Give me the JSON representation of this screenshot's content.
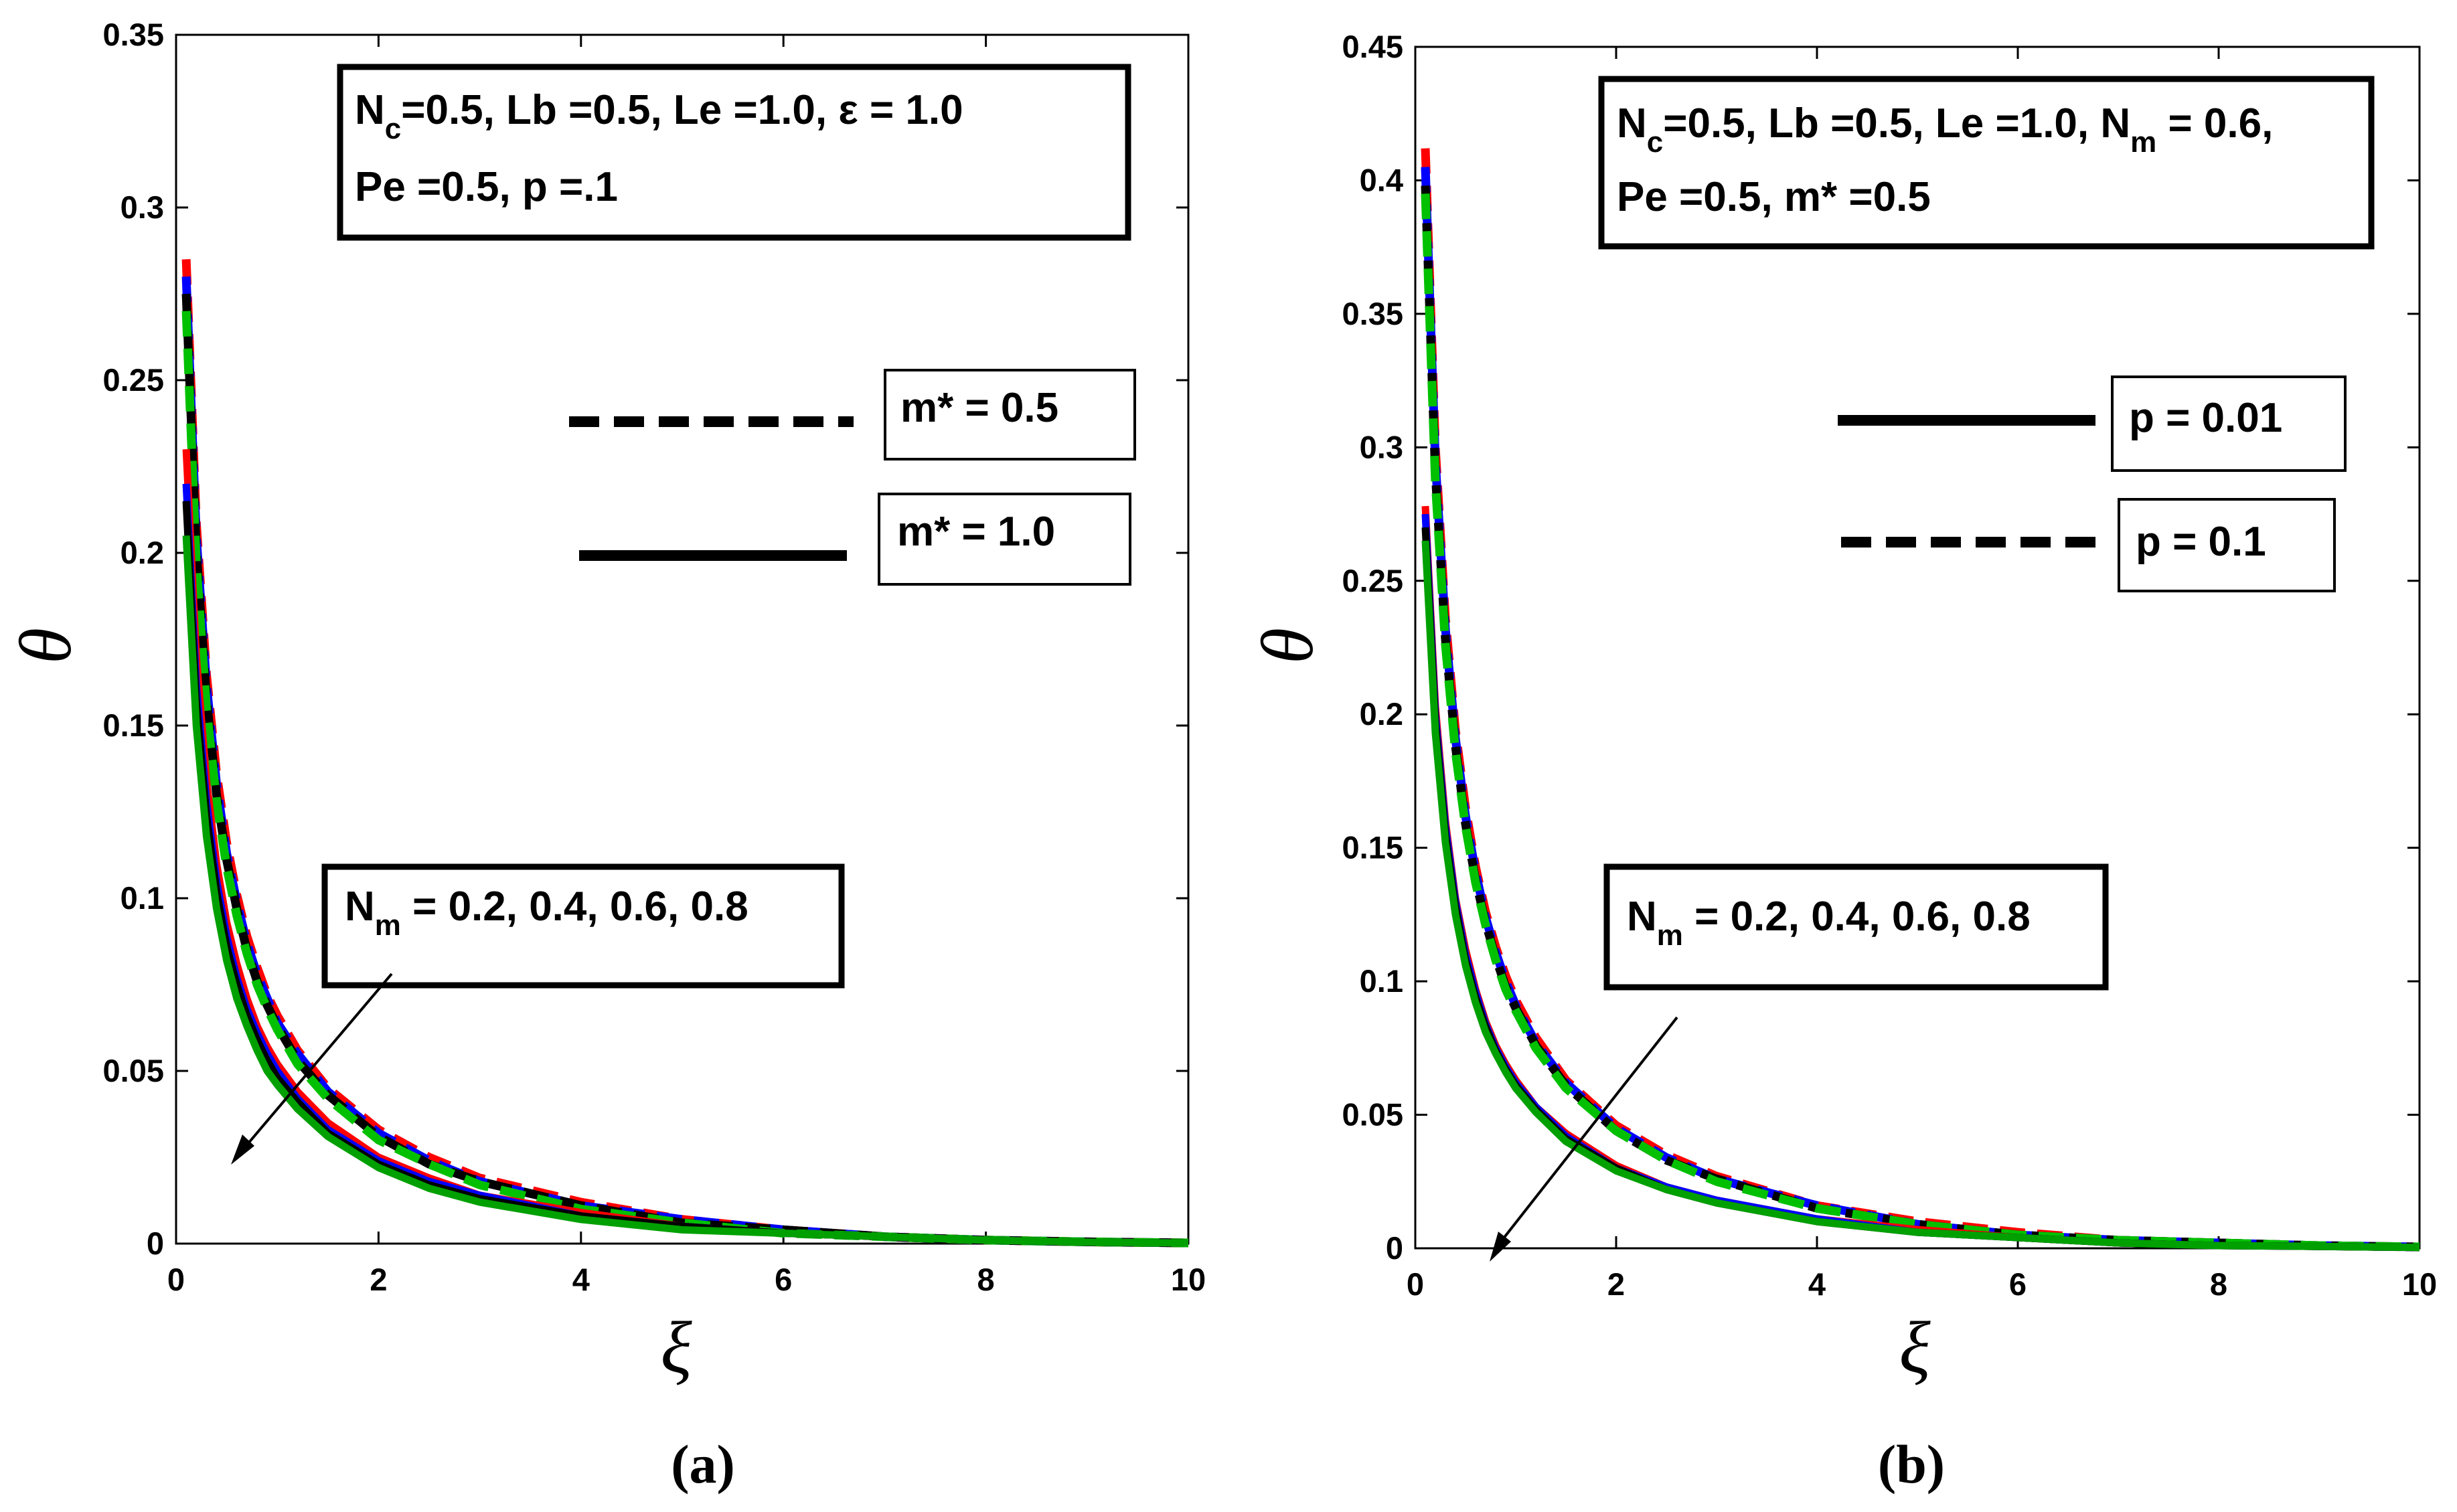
{
  "chart_data": [
    {
      "type": "line",
      "panel_label": "(a)",
      "xlabel": "ξ",
      "ylabel": "θ",
      "xlim": [
        0,
        10
      ],
      "ylim": [
        0,
        0.35
      ],
      "xticks": [
        "0",
        "2",
        "4",
        "6",
        "8",
        "10"
      ],
      "yticks": [
        "0",
        "0.05",
        "0.1",
        "0.15",
        "0.2",
        "0.25",
        "0.3",
        "0.35"
      ],
      "params": {
        "line1": "N_c=0.5, Lb =0.5, Le =1.0, ε = 1.0",
        "line2": "Pe =0.5, p =.1"
      },
      "legend": [
        {
          "label": "m* = 0.5",
          "style": "dashed"
        },
        {
          "label": "m* = 1.0",
          "style": "solid"
        }
      ],
      "annotation": "N_m = 0.2, 0.4, 0.6, 0.8",
      "x": [
        0.1,
        0.2,
        0.3,
        0.4,
        0.5,
        0.6,
        0.7,
        0.8,
        0.9,
        1.0,
        1.2,
        1.5,
        2.0,
        2.5,
        3.0,
        4.0,
        5.0,
        6.0,
        7.0,
        8.0,
        9.0,
        10.0
      ],
      "series": [
        {
          "group": "m* = 0.5",
          "style": "dashed",
          "color": "#ff0000",
          "values": [
            0.285,
            0.209,
            0.165,
            0.136,
            0.116,
            0.101,
            0.089,
            0.08,
            0.072,
            0.066,
            0.056,
            0.045,
            0.033,
            0.025,
            0.019,
            0.012,
            0.007,
            0.004,
            0.002,
            0.001,
            0.0005,
            0.0002
          ]
        },
        {
          "group": "m* = 0.5",
          "style": "dashed",
          "color": "#0000ff",
          "values": [
            0.28,
            0.205,
            0.162,
            0.133,
            0.113,
            0.099,
            0.087,
            0.078,
            0.071,
            0.064,
            0.055,
            0.044,
            0.032,
            0.024,
            0.018,
            0.011,
            0.007,
            0.004,
            0.002,
            0.001,
            0.0005,
            0.0002
          ]
        },
        {
          "group": "m* = 0.5",
          "style": "dashed",
          "color": "#000000",
          "values": [
            0.275,
            0.201,
            0.158,
            0.13,
            0.111,
            0.097,
            0.085,
            0.076,
            0.069,
            0.063,
            0.053,
            0.043,
            0.031,
            0.023,
            0.018,
            0.011,
            0.006,
            0.004,
            0.002,
            0.001,
            0.0005,
            0.0002
          ]
        },
        {
          "group": "m* = 0.5",
          "style": "dashed",
          "color": "#00c000",
          "values": [
            0.27,
            0.197,
            0.155,
            0.128,
            0.109,
            0.095,
            0.084,
            0.075,
            0.068,
            0.062,
            0.052,
            0.042,
            0.03,
            0.023,
            0.017,
            0.01,
            0.006,
            0.003,
            0.002,
            0.001,
            0.0005,
            0.0002
          ]
        },
        {
          "group": "m* = 1.0",
          "style": "solid",
          "color": "#ff0000",
          "values": [
            0.23,
            0.17,
            0.134,
            0.11,
            0.093,
            0.081,
            0.071,
            0.063,
            0.057,
            0.052,
            0.044,
            0.035,
            0.025,
            0.019,
            0.014,
            0.009,
            0.005,
            0.003,
            0.002,
            0.001,
            0.0004,
            0.0002
          ]
        },
        {
          "group": "m* = 1.0",
          "style": "solid",
          "color": "#0000ff",
          "values": [
            0.22,
            0.162,
            0.128,
            0.105,
            0.089,
            0.077,
            0.068,
            0.061,
            0.055,
            0.05,
            0.042,
            0.033,
            0.024,
            0.018,
            0.014,
            0.008,
            0.005,
            0.003,
            0.002,
            0.001,
            0.0004,
            0.0002
          ]
        },
        {
          "group": "m* = 1.0",
          "style": "solid",
          "color": "#000000",
          "values": [
            0.215,
            0.157,
            0.124,
            0.102,
            0.086,
            0.075,
            0.066,
            0.059,
            0.053,
            0.048,
            0.041,
            0.032,
            0.023,
            0.017,
            0.013,
            0.008,
            0.005,
            0.003,
            0.002,
            0.001,
            0.0004,
            0.0002
          ]
        },
        {
          "group": "m* = 1.0",
          "style": "solid",
          "color": "#00a000",
          "values": [
            0.205,
            0.15,
            0.118,
            0.097,
            0.082,
            0.071,
            0.063,
            0.056,
            0.05,
            0.046,
            0.039,
            0.031,
            0.022,
            0.016,
            0.012,
            0.007,
            0.004,
            0.003,
            0.002,
            0.001,
            0.0004,
            0.0002
          ]
        }
      ]
    },
    {
      "type": "line",
      "panel_label": "(b)",
      "xlabel": "ξ",
      "ylabel": "θ",
      "xlim": [
        0,
        10
      ],
      "ylim": [
        0,
        0.45
      ],
      "xticks": [
        "0",
        "2",
        "4",
        "6",
        "8",
        "10"
      ],
      "yticks": [
        "0",
        "0.05",
        "0.1",
        "0.15",
        "0.2",
        "0.25",
        "0.3",
        "0.35",
        "0.4",
        "0.45"
      ],
      "params": {
        "line1": "N_c=0.5, Lb =0.5, Le =1.0, N_m = 0.6,",
        "line2": "Pe =0.5, m* =0.5"
      },
      "legend": [
        {
          "label": "p = 0.01",
          "style": "solid"
        },
        {
          "label": "p = 0.1",
          "style": "dashed"
        }
      ],
      "annotation": "N_m = 0.2, 0.4, 0.6, 0.8",
      "x": [
        0.1,
        0.2,
        0.3,
        0.4,
        0.5,
        0.6,
        0.7,
        0.8,
        0.9,
        1.0,
        1.2,
        1.5,
        2.0,
        2.5,
        3.0,
        4.0,
        5.0,
        6.0,
        7.0,
        8.0,
        9.0,
        10.0
      ],
      "series": [
        {
          "group": "p = 0.1",
          "style": "dashed",
          "color": "#ff0000",
          "values": [
            0.412,
            0.3,
            0.236,
            0.194,
            0.165,
            0.143,
            0.126,
            0.113,
            0.102,
            0.093,
            0.079,
            0.063,
            0.046,
            0.035,
            0.027,
            0.016,
            0.01,
            0.006,
            0.003,
            0.002,
            0.001,
            0.0005
          ]
        },
        {
          "group": "p = 0.1",
          "style": "dashed",
          "color": "#0000ff",
          "values": [
            0.405,
            0.295,
            0.232,
            0.191,
            0.162,
            0.141,
            0.124,
            0.111,
            0.1,
            0.091,
            0.077,
            0.062,
            0.045,
            0.034,
            0.026,
            0.016,
            0.009,
            0.005,
            0.003,
            0.002,
            0.001,
            0.0005
          ]
        },
        {
          "group": "p = 0.1",
          "style": "dashed",
          "color": "#000000",
          "values": [
            0.398,
            0.29,
            0.228,
            0.188,
            0.159,
            0.138,
            0.122,
            0.109,
            0.098,
            0.09,
            0.076,
            0.061,
            0.044,
            0.033,
            0.026,
            0.015,
            0.009,
            0.005,
            0.003,
            0.002,
            0.001,
            0.0005
          ]
        },
        {
          "group": "p = 0.1",
          "style": "dashed",
          "color": "#00c000",
          "values": [
            0.395,
            0.287,
            0.226,
            0.186,
            0.158,
            0.137,
            0.121,
            0.108,
            0.097,
            0.089,
            0.075,
            0.06,
            0.044,
            0.033,
            0.025,
            0.015,
            0.009,
            0.005,
            0.003,
            0.002,
            0.001,
            0.0005
          ]
        },
        {
          "group": "p = 0.01",
          "style": "solid",
          "color": "#ff0000",
          "values": [
            0.278,
            0.203,
            0.16,
            0.131,
            0.112,
            0.097,
            0.085,
            0.076,
            0.069,
            0.063,
            0.053,
            0.043,
            0.031,
            0.023,
            0.018,
            0.011,
            0.007,
            0.004,
            0.002,
            0.001,
            0.0007,
            0.0003
          ]
        },
        {
          "group": "p = 0.01",
          "style": "solid",
          "color": "#0000ff",
          "values": [
            0.275,
            0.2,
            0.158,
            0.13,
            0.11,
            0.096,
            0.084,
            0.075,
            0.068,
            0.062,
            0.053,
            0.042,
            0.03,
            0.023,
            0.018,
            0.011,
            0.006,
            0.004,
            0.002,
            0.001,
            0.0007,
            0.0003
          ]
        },
        {
          "group": "p = 0.01",
          "style": "solid",
          "color": "#000000",
          "values": [
            0.27,
            0.197,
            0.155,
            0.128,
            0.108,
            0.094,
            0.083,
            0.074,
            0.067,
            0.061,
            0.052,
            0.041,
            0.03,
            0.022,
            0.017,
            0.01,
            0.006,
            0.004,
            0.002,
            0.001,
            0.0007,
            0.0003
          ]
        },
        {
          "group": "p = 0.01",
          "style": "solid",
          "color": "#00a000",
          "values": [
            0.265,
            0.193,
            0.152,
            0.125,
            0.106,
            0.092,
            0.081,
            0.073,
            0.066,
            0.06,
            0.051,
            0.04,
            0.029,
            0.022,
            0.017,
            0.01,
            0.006,
            0.004,
            0.002,
            0.001,
            0.0007,
            0.0003
          ]
        }
      ]
    }
  ],
  "text": {
    "a": {
      "p1_pre": "N",
      "p1_sub": "c",
      "p1_post": "=0.5, Lb =0.5, Le =1.0, ε = 1.0",
      "p2": "Pe =0.5, p =.1",
      "leg1": "m* = 0.5",
      "leg2": "m* = 1.0",
      "ann_pre": "N",
      "ann_sub": "m",
      "ann_post": " = 0.2, 0.4, 0.6, 0.8"
    },
    "b": {
      "p1_pre": "N",
      "p1_sub": "c",
      "p1_mid": "=0.5, Lb =0.5, Le =1.0, N",
      "p1_sub2": "m",
      "p1_post": " = 0.6,",
      "p2": "Pe =0.5, m* =0.5",
      "leg1": "p = 0.01",
      "leg2": "p = 0.1",
      "ann_pre": "N",
      "ann_sub": "m",
      "ann_post": " = 0.2, 0.4, 0.6, 0.8"
    }
  }
}
